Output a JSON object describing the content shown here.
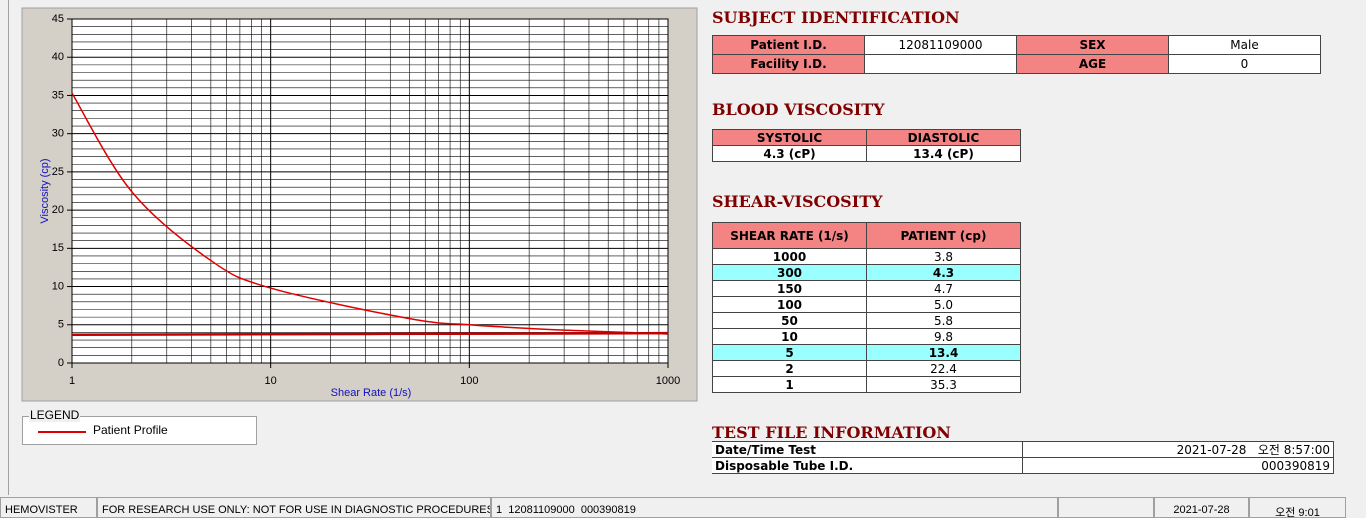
{
  "chart_data": {
    "type": "line",
    "x_label": "Shear Rate (1/s)",
    "y_label": "Viscosity (cp)",
    "x_log": true,
    "grid": true,
    "xlim": [
      1,
      1000
    ],
    "ylim": [
      0,
      45
    ],
    "xticks": [
      1,
      10,
      100,
      1000
    ],
    "yticks": [
      0,
      5,
      10,
      15,
      20,
      25,
      30,
      35,
      40,
      45
    ],
    "xminorticks": [
      2,
      3,
      4,
      5,
      6,
      7,
      8,
      9,
      20,
      30,
      40,
      50,
      60,
      70,
      80,
      90,
      200,
      300,
      400,
      500,
      600,
      700,
      800,
      900
    ],
    "yminorticks": [
      1,
      2,
      3,
      4,
      6,
      7,
      8,
      9,
      11,
      12,
      13,
      14,
      16,
      17,
      18,
      19,
      21,
      22,
      23,
      24,
      26,
      27,
      28,
      29,
      31,
      32,
      33,
      34,
      36,
      37,
      38,
      39,
      41,
      42,
      43,
      44
    ],
    "series": [
      {
        "name": "Patient Profile",
        "color": "#e00000",
        "x": [
          1,
          2,
          5,
          10,
          50,
          100,
          150,
          300,
          1000
        ],
        "values": [
          35.3,
          22.4,
          13.4,
          9.8,
          5.8,
          5.0,
          4.7,
          4.3,
          3.8
        ]
      },
      {
        "color": "#c00000",
        "x": [
          1,
          1000
        ],
        "values": [
          3.7,
          3.9
        ]
      }
    ],
    "legend_title": "LEGEND"
  },
  "subject_identification": {
    "title": "SUBJECT IDENTIFICATION",
    "fields": [
      {
        "label": "Patient I.D.",
        "value": "12081109000"
      },
      {
        "label": "SEX",
        "value": "Male"
      },
      {
        "label": "Facility I.D."
      },
      {
        "label": "AGE",
        "value": "0"
      }
    ]
  },
  "blood_viscosity": {
    "title": "BLOOD VISCOSITY",
    "headers": [
      "SYSTOLIC",
      "DIASTOLIC"
    ],
    "values": [
      "4.3 (cP)",
      "13.4 (cP)"
    ]
  },
  "shear_viscosity": {
    "title": "SHEAR-VISCOSITY",
    "headers": [
      "SHEAR RATE (1/s)",
      "PATIENT (cp)"
    ],
    "rows": [
      {
        "cells": [
          "1000",
          "3.8"
        ]
      },
      {
        "cells": [
          "300",
          "4.3"
        ],
        "highlight": true
      },
      {
        "cells": [
          "150",
          "4.7"
        ]
      },
      {
        "cells": [
          "100",
          "5.0"
        ]
      },
      {
        "cells": [
          "50",
          "5.8"
        ]
      },
      {
        "cells": [
          "10",
          "9.8"
        ]
      },
      {
        "cells": [
          "5",
          "13.4"
        ],
        "highlight": true
      },
      {
        "cells": [
          "2",
          "22.4"
        ]
      },
      {
        "cells": [
          "1",
          "35.3"
        ]
      }
    ]
  },
  "test_file_information": {
    "title": "TEST FILE INFORMATION",
    "rows": [
      {
        "label": "Date/Time Test",
        "value": "2021-07-28   오전 8:57:00"
      },
      {
        "label": "Disposable Tube I.D.",
        "value": "000390819"
      }
    ]
  },
  "status_bar": {
    "app": "HEMOVISTER",
    "notice": "FOR RESEARCH USE ONLY: NOT FOR USE IN DIAGNOSTIC PROCEDURES",
    "record": "1  12081109000  000390819",
    "date": "2021-07-28",
    "time": "오전 9:01"
  }
}
